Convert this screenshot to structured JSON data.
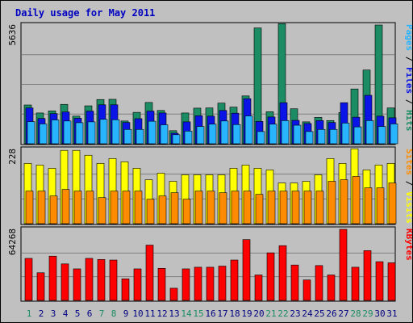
{
  "chart_data": {
    "type": "bar",
    "title": "Daily usage for May 2011",
    "categories": [
      "1",
      "2",
      "3",
      "4",
      "5",
      "6",
      "7",
      "8",
      "9",
      "10",
      "11",
      "12",
      "13",
      "14",
      "15",
      "16",
      "17",
      "18",
      "19",
      "20",
      "21",
      "22",
      "23",
      "24",
      "25",
      "26",
      "27",
      "28",
      "29",
      "30",
      "31"
    ],
    "weekend_days": [
      "1",
      "7",
      "8",
      "14",
      "15",
      "21",
      "22",
      "28",
      "29"
    ],
    "panels": [
      {
        "id": "top",
        "ymax_label": "5636",
        "ymax": 5636,
        "side_label": {
          "parts": [
            "Pages",
            " / ",
            "Files",
            " / ",
            "Hits"
          ]
        },
        "series": [
          {
            "name": "Hits",
            "color": "#1c8c64",
            "values": [
              1840,
              1460,
              1560,
              1870,
              1310,
              1800,
              2100,
              2110,
              1080,
              1490,
              1960,
              1580,
              620,
              1460,
              1690,
              1700,
              1930,
              1740,
              2270,
              5500,
              1520,
              5700,
              1660,
              1040,
              1250,
              1100,
              1480,
              2600,
              3500,
              5636,
              1700
            ]
          },
          {
            "name": "Files",
            "color": "#0a14e6",
            "values": [
              1700,
              1200,
              1430,
              1510,
              1210,
              1550,
              1850,
              1850,
              1010,
              1190,
              1550,
              1460,
              500,
              1040,
              1330,
              1310,
              1580,
              1450,
              2140,
              1060,
              1270,
              1950,
              1110,
              960,
              1100,
              1010,
              1950,
              1260,
              2300,
              1310,
              1230
            ]
          },
          {
            "name": "Pages",
            "color": "#28b4ff",
            "values": [
              1050,
              940,
              1130,
              1080,
              1000,
              1040,
              1160,
              1140,
              680,
              680,
              1070,
              900,
              430,
              600,
              820,
              930,
              1080,
              910,
              1320,
              580,
              930,
              1100,
              880,
              580,
              680,
              680,
              980,
              800,
              1100,
              820,
              940
            ]
          }
        ]
      },
      {
        "id": "middle",
        "ymax_label": "228",
        "ymax": 228,
        "side_label": {
          "parts": [
            "Sites",
            " / ",
            "Visits"
          ]
        },
        "series": [
          {
            "name": "Visits",
            "color": "#ffff00",
            "values": [
              185,
              180,
              170,
              225,
              225,
              210,
              185,
              200,
              190,
              170,
              135,
              155,
              130,
              150,
              150,
              150,
              150,
              170,
              180,
              170,
              165,
              125,
              125,
              130,
              150,
              200,
              185,
              230,
              165,
              180,
              185
            ]
          },
          {
            "name": "Sites",
            "color": "#ff8c00",
            "values": [
              100,
              100,
              85,
              105,
              100,
              100,
              80,
              100,
              100,
              100,
              75,
              85,
              95,
              75,
              100,
              100,
              95,
              100,
              100,
              90,
              100,
              100,
              100,
              100,
              100,
              130,
              135,
              145,
              110,
              110,
              125
            ]
          }
        ]
      },
      {
        "id": "bottom",
        "ymax_label": "64268",
        "ymax": 64268,
        "side_label": {
          "parts": [
            "KBytes"
          ]
        },
        "series": [
          {
            "name": "KBytes",
            "color": "#ff0000",
            "values": [
              38000,
              25000,
              40000,
              33000,
              28500,
              38000,
              37000,
              36500,
              19500,
              28500,
              50000,
              29000,
              11000,
              28500,
              30000,
              30000,
              31000,
              36500,
              55000,
              23000,
              43000,
              49500,
              32000,
              18500,
              31500,
              23000,
              64268,
              30000,
              45000,
              35000,
              34000
            ]
          }
        ]
      }
    ]
  }
}
